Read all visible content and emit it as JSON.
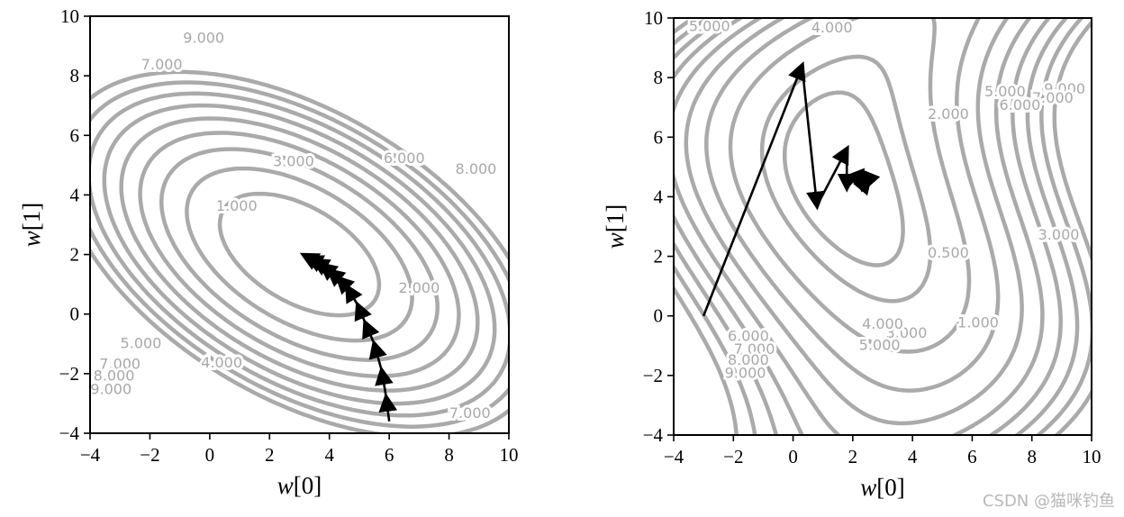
{
  "chart_data": [
    {
      "type": "contour",
      "xlabel_var": "w",
      "xlabel_idx": "[0]",
      "ylabel_var": "w",
      "ylabel_idx": "[1]",
      "xlim": [
        -4,
        10
      ],
      "ylim": [
        -4,
        10
      ],
      "xticks": [
        "−4",
        "−2",
        "0",
        "2",
        "4",
        "6",
        "8",
        "10"
      ],
      "yticks": [
        "−4",
        "−2",
        "0",
        "2",
        "4",
        "6",
        "8",
        "10"
      ],
      "contour_color": "#aaaaaa",
      "path_color": "#000000",
      "contour_labels": [
        {
          "text": "9.000",
          "x": -0.2,
          "y": 9.25
        },
        {
          "text": "7.000",
          "x": -1.6,
          "y": 8.35
        },
        {
          "text": "3.000",
          "x": 2.8,
          "y": 5.1
        },
        {
          "text": "6.000",
          "x": 6.5,
          "y": 5.2
        },
        {
          "text": "8.000",
          "x": 8.9,
          "y": 4.85
        },
        {
          "text": "1.000",
          "x": 0.9,
          "y": 3.6
        },
        {
          "text": "2.000",
          "x": 7.0,
          "y": 0.85
        },
        {
          "text": "5.000",
          "x": -2.3,
          "y": -1.0
        },
        {
          "text": "4.000",
          "x": 0.4,
          "y": -1.65
        },
        {
          "text": "7.000",
          "x": -3.0,
          "y": -1.7
        },
        {
          "text": "8.000",
          "x": -3.2,
          "y": -2.1
        },
        {
          "text": "9.000",
          "x": -3.3,
          "y": -2.55
        },
        {
          "text": "7.000",
          "x": 8.7,
          "y": -3.35
        }
      ],
      "path": [
        [
          6.0,
          -3.6
        ],
        [
          5.9,
          -2.8
        ],
        [
          5.75,
          -1.9
        ],
        [
          5.5,
          -1.0
        ],
        [
          5.2,
          -0.3
        ],
        [
          4.95,
          0.3
        ],
        [
          4.6,
          0.9
        ],
        [
          4.3,
          1.2
        ],
        [
          4.0,
          1.45
        ],
        [
          3.75,
          1.65
        ],
        [
          3.5,
          1.8
        ],
        [
          3.3,
          1.9
        ],
        [
          3.15,
          1.98
        ]
      ]
    },
    {
      "type": "contour",
      "xlabel_var": "w",
      "xlabel_idx": "[0]",
      "ylabel_var": "w",
      "ylabel_idx": "[1]",
      "xlim": [
        -4,
        10
      ],
      "ylim": [
        -4,
        10
      ],
      "xticks": [
        "−4",
        "−2",
        "0",
        "2",
        "4",
        "6",
        "8",
        "10"
      ],
      "yticks": [
        "−4",
        "−2",
        "0",
        "2",
        "4",
        "6",
        "8",
        "10"
      ],
      "contour_color": "#aaaaaa",
      "path_color": "#000000",
      "contour_labels": [
        {
          "text": "5.000",
          "x": -2.8,
          "y": 9.7
        },
        {
          "text": "4.000",
          "x": 1.3,
          "y": 9.65
        },
        {
          "text": "9.000",
          "x": 9.1,
          "y": 7.6
        },
        {
          "text": "7.000",
          "x": 8.7,
          "y": 7.3
        },
        {
          "text": "5.000",
          "x": 7.1,
          "y": 7.5
        },
        {
          "text": "6.000",
          "x": 7.6,
          "y": 7.05
        },
        {
          "text": "2.000",
          "x": 5.2,
          "y": 6.75
        },
        {
          "text": "3.000",
          "x": 8.9,
          "y": 2.7
        },
        {
          "text": "0.500",
          "x": 5.2,
          "y": 2.1
        },
        {
          "text": "1.000",
          "x": 6.2,
          "y": -0.25
        },
        {
          "text": "3.000",
          "x": 3.8,
          "y": -0.6
        },
        {
          "text": "4.000",
          "x": 3.0,
          "y": -0.3
        },
        {
          "text": "5.000",
          "x": 2.9,
          "y": -1.0
        },
        {
          "text": "6.000",
          "x": -1.5,
          "y": -0.7
        },
        {
          "text": "7.000",
          "x": -1.3,
          "y": -1.15
        },
        {
          "text": "8.000",
          "x": -1.5,
          "y": -1.5
        },
        {
          "text": "9.000",
          "x": -1.6,
          "y": -1.95
        }
      ],
      "path": [
        [
          -3.0,
          0.0
        ],
        [
          0.3,
          8.4
        ],
        [
          0.8,
          3.7
        ],
        [
          1.8,
          5.6
        ],
        [
          1.8,
          4.3
        ],
        [
          2.3,
          4.85
        ],
        [
          2.3,
          4.3
        ],
        [
          2.55,
          4.6
        ],
        [
          2.45,
          4.35
        ]
      ]
    }
  ],
  "watermark": "CSDN @猫咪钓鱼"
}
